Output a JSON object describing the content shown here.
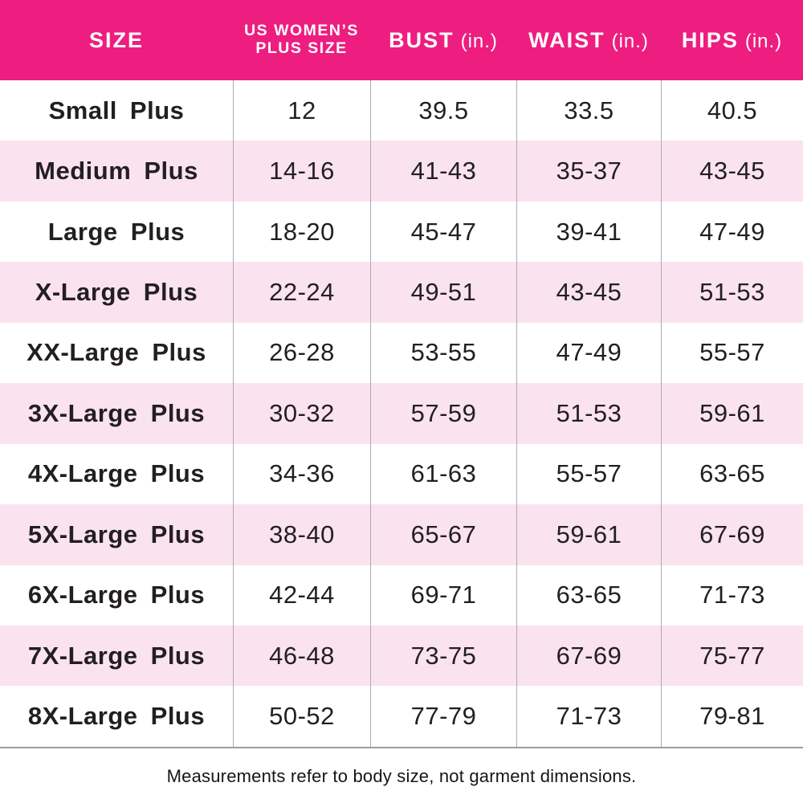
{
  "colors": {
    "header_bg": "#ED1E7F",
    "row_alt_bg": "#FAE3EE",
    "grid_line": "#ACACAC",
    "text": "#231F20",
    "header_text": "#FFFFFF"
  },
  "header": {
    "size_label": "SIZE",
    "plus_line1": "US WOMEN’S",
    "plus_line2": "PLUS SIZE",
    "bust_label": "BUST",
    "bust_unit": "(in.)",
    "waist_label": "WAIST",
    "waist_unit": "(in.)",
    "hips_label": "HIPS",
    "hips_unit": "(in.)"
  },
  "chart_data": {
    "type": "table",
    "columns": [
      "SIZE",
      "US WOMEN'S PLUS SIZE",
      "BUST (in.)",
      "WAIST (in.)",
      "HIPS (in.)"
    ],
    "rows": [
      {
        "size": "Small Plus",
        "values": [
          "12",
          "39.5",
          "33.5",
          "40.5"
        ]
      },
      {
        "size": "Medium Plus",
        "values": [
          "14-16",
          "41-43",
          "35-37",
          "43-45"
        ]
      },
      {
        "size": "Large Plus",
        "values": [
          "18-20",
          "45-47",
          "39-41",
          "47-49"
        ]
      },
      {
        "size": "X-Large Plus",
        "values": [
          "22-24",
          "49-51",
          "43-45",
          "51-53"
        ]
      },
      {
        "size": "XX-Large Plus",
        "values": [
          "26-28",
          "53-55",
          "47-49",
          "55-57"
        ]
      },
      {
        "size": "3X-Large Plus",
        "values": [
          "30-32",
          "57-59",
          "51-53",
          "59-61"
        ]
      },
      {
        "size": "4X-Large Plus",
        "values": [
          "34-36",
          "61-63",
          "55-57",
          "63-65"
        ]
      },
      {
        "size": "5X-Large Plus",
        "values": [
          "38-40",
          "65-67",
          "59-61",
          "67-69"
        ]
      },
      {
        "size": "6X-Large Plus",
        "values": [
          "42-44",
          "69-71",
          "63-65",
          "71-73"
        ]
      },
      {
        "size": "7X-Large Plus",
        "values": [
          "46-48",
          "73-75",
          "67-69",
          "75-77"
        ]
      },
      {
        "size": "8X-Large Plus",
        "values": [
          "50-52",
          "77-79",
          "71-73",
          "79-81"
        ]
      }
    ]
  },
  "footer": {
    "note": "Measurements refer to body size, not garment dimensions."
  }
}
